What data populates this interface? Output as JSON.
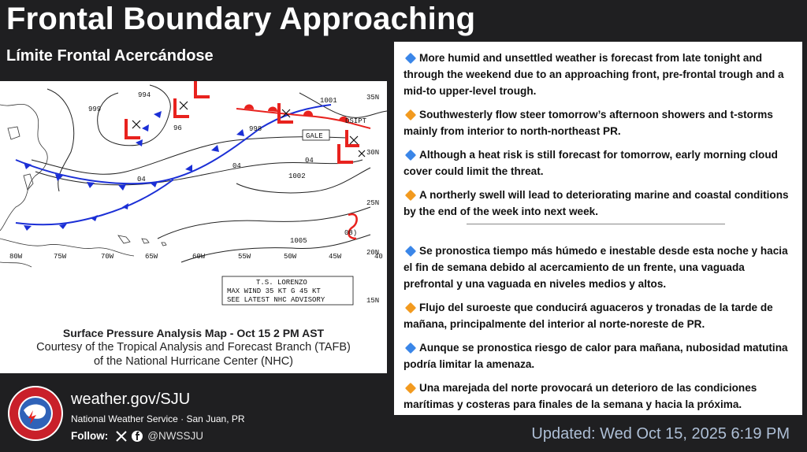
{
  "header": {
    "title": "Frontal Boundary Approaching",
    "subtitle": "Límite Frontal Acercándose"
  },
  "map": {
    "pressure_labels": [
      "999",
      "994",
      "96",
      "1001",
      "998",
      "04",
      "04",
      "04",
      "1002",
      "1005",
      "08)"
    ],
    "lat_labels": [
      "35N",
      "30N",
      "25N",
      "20N",
      "15N"
    ],
    "lon_labels": [
      "80W",
      "75W",
      "70W",
      "65W",
      "60W",
      "55W",
      "50W",
      "45W",
      "40"
    ],
    "tags": {
      "gale": "GALE",
      "dsipt": "DSIPT",
      "advisory_1": "T.S. LORENZO",
      "advisory_2": "MAX WIND 35 KT G 45 KT",
      "advisory_3": "SEE LATEST NHC ADVISORY"
    }
  },
  "caption": {
    "line1": "Surface Pressure Analysis Map - Oct 15 2 PM AST",
    "line2": "Courtesy of the Tropical Analysis and Forecast Branch (TAFB)",
    "line3": "of the National Hurricane Center (NHC)"
  },
  "colors": {
    "blue_diamond": "#3a86e8",
    "orange_diamond": "#f29a1f",
    "front_red": "#e8221e",
    "front_blue": "#1b2fd6",
    "background": "#1f1f21",
    "updated_text": "#aebfd6"
  },
  "bullets_en": [
    {
      "icon": "blue-diamond",
      "text": "More humid and unsettled weather is forecast from late tonight and through the weekend due to an approaching front, pre-frontal trough and a mid-to upper-level trough."
    },
    {
      "icon": "orange-diamond",
      "text": "Southwesterly flow steer tomorrow’s afternoon showers and t-storms mainly from interior to north-northeast PR."
    },
    {
      "icon": "blue-diamond",
      "text": "Although a heat risk is still forecast for tomorrow, early morning cloud cover could limit the threat."
    },
    {
      "icon": "orange-diamond",
      "text": "A northerly swell will lead to deteriorating marine and coastal conditions by the end of the week into next week."
    }
  ],
  "bullets_es": [
    {
      "icon": "blue-diamond",
      "text": "Se pronostica tiempo más húmedo e inestable desde esta noche y hacia el fin de semana debido al acercamiento de un frente, una vaguada prefrontal y una vaguada en niveles medios y altos."
    },
    {
      "icon": "orange-diamond",
      "text": "Flujo del suroeste que conducirá aguaceros y tronadas de la tarde de mañana, principalmente del interior al norte-noreste de PR."
    },
    {
      "icon": "blue-diamond",
      "text": "Aunque se pronostica riesgo de calor para mañana, nubosidad matutina podría limitar la amenaza."
    },
    {
      "icon": "orange-diamond",
      "text": "Una marejada del norte provocará un deterioro de las condiciones marítimas y costeras para finales de la semana y hacia la próxima."
    }
  ],
  "footer": {
    "url": "weather.gov/SJU",
    "office": "National Weather Service · San Juan, PR",
    "follow_label": "Follow:",
    "handle": "@NWSSJU",
    "updated": "Updated: Wed Oct 15, 2025 6:19 PM",
    "logo_text_top": "NATIONAL WEATHER",
    "logo_text_bottom": "SERVICE"
  }
}
